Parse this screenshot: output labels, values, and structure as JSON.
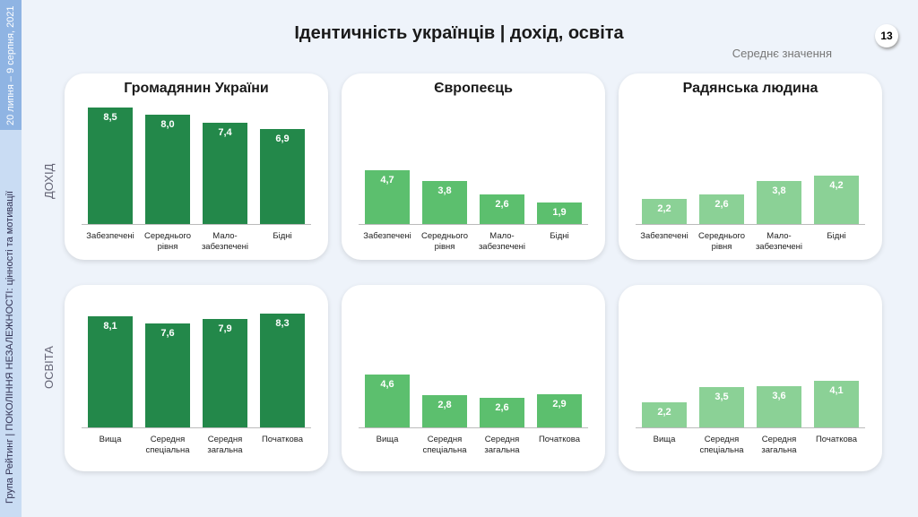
{
  "title": "Ідентичність українців | дохід, освіта",
  "subtitle": "Середнє значення",
  "page_number": "13",
  "sidebar": {
    "date": "20 липня – 9 серпня, 2021",
    "source": "Група Рейтинг | ПОКОЛІННЯ НЕЗАЛЕЖНОСТІ: цінності та мотивації"
  },
  "row_labels": [
    "ДОХІД",
    "ОСВІТА"
  ],
  "chart_data": [
    {
      "type": "bar",
      "title": "Громадянин України",
      "categories": [
        "Забезпечені",
        "Середнього\nрівня",
        "Мало-\nзабезпечені",
        "Бідні"
      ],
      "values": [
        8.5,
        8.0,
        7.4,
        6.9
      ],
      "value_labels": [
        "8,5",
        "8,0",
        "7,4",
        "6,9"
      ],
      "color": "#23884a",
      "ylim": [
        0,
        10
      ]
    },
    {
      "type": "bar",
      "title": "Європеєць",
      "categories": [
        "Забезпечені",
        "Середнього\nрівня",
        "Мало-\nзабезпечені",
        "Бідні"
      ],
      "values": [
        4.7,
        3.8,
        2.6,
        1.9
      ],
      "value_labels": [
        "4,7",
        "3,8",
        "2,6",
        "1,9"
      ],
      "color": "#5cbf6e",
      "ylim": [
        0,
        12
      ]
    },
    {
      "type": "bar",
      "title": "Радянська людина",
      "categories": [
        "Забезпечені",
        "Середнього\nрівня",
        "Мало-\nзабезпечені",
        "Бідні"
      ],
      "values": [
        2.2,
        2.6,
        3.8,
        4.2
      ],
      "value_labels": [
        "2,2",
        "2,6",
        "3,8",
        "4,2"
      ],
      "color": "#8bd196",
      "ylim": [
        0,
        12
      ]
    },
    {
      "type": "bar",
      "categories": [
        "Вища",
        "Середня\nспеціальна",
        "Середня\nзагальна",
        "Початкова"
      ],
      "values": [
        8.1,
        7.6,
        7.9,
        8.3
      ],
      "value_labels": [
        "8,1",
        "7,6",
        "7,9",
        "8,3"
      ],
      "color": "#23884a",
      "ylim": [
        0,
        10
      ]
    },
    {
      "type": "bar",
      "categories": [
        "Вища",
        "Середня\nспеціальна",
        "Середня\nзагальна",
        "Початкова"
      ],
      "values": [
        4.6,
        2.8,
        2.6,
        2.9
      ],
      "value_labels": [
        "4,6",
        "2,8",
        "2,6",
        "2,9"
      ],
      "color": "#5cbf6e",
      "ylim": [
        0,
        12
      ]
    },
    {
      "type": "bar",
      "categories": [
        "Вища",
        "Середня\nспеціальна",
        "Середня\nзагальна",
        "Початкова"
      ],
      "values": [
        2.2,
        3.5,
        3.6,
        4.1
      ],
      "value_labels": [
        "2,2",
        "3,5",
        "3,6",
        "4,1"
      ],
      "color": "#8bd196",
      "ylim": [
        0,
        12
      ]
    }
  ]
}
